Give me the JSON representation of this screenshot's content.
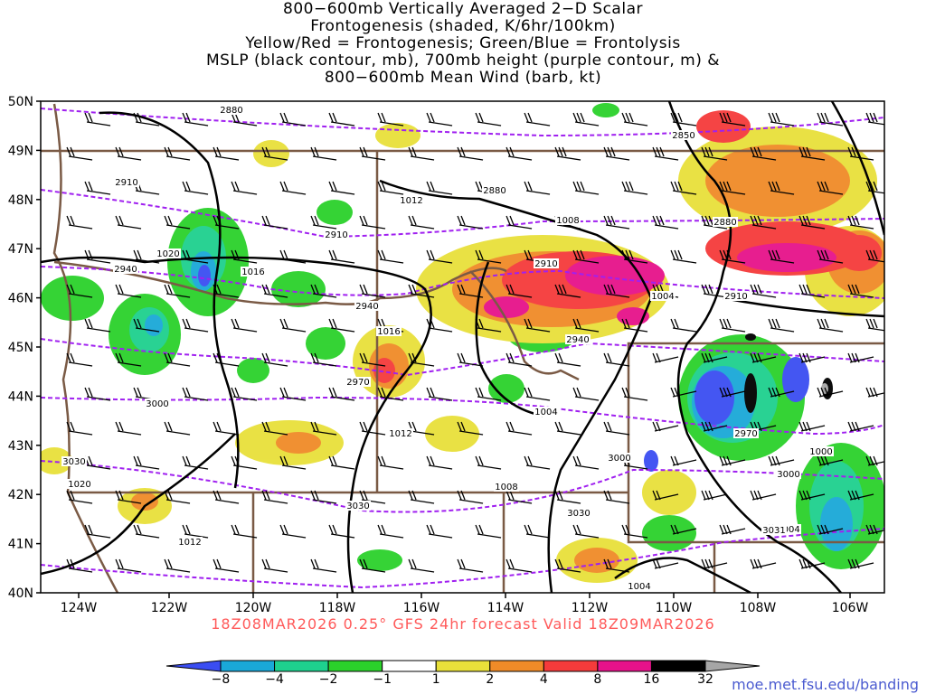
{
  "title_lines": [
    "800−600mb Vertically Averaged 2−D Scalar",
    "Frontogenesis (shaded, K/6hr/100km)",
    "Yellow/Red = Frontogenesis;  Green/Blue = Frontolysis",
    "MSLP (black contour, mb), 700mb height (purple contour, m) &",
    "800−600mb Mean Wind (barb, kt)"
  ],
  "map": {
    "lat_labels": [
      "50N",
      "49N",
      "48N",
      "47N",
      "46N",
      "45N",
      "44N",
      "43N",
      "42N",
      "41N",
      "40N"
    ],
    "lon_labels": [
      "124W",
      "122W",
      "120W",
      "118W",
      "116W",
      "114W",
      "112W",
      "110W",
      "108W",
      "106W"
    ],
    "mslp_labels": [
      "1020",
      "1016",
      "1012",
      "1008",
      "1004",
      "1000",
      "1016",
      "1012",
      "1008",
      "1004",
      "1012",
      "1020",
      "1004",
      "1004"
    ],
    "height_labels": [
      "2880",
      "2850",
      "2910",
      "2880",
      "2880",
      "2910",
      "2940",
      "2910",
      "2910",
      "2940",
      "2940",
      "2970",
      "3000",
      "2970",
      "3030",
      "3000",
      "3030",
      "3000",
      "3030",
      "3031"
    ],
    "colors": {
      "neg_8": "#3a4df2",
      "neg_4": "#1aa8d8",
      "neg_2": "#1ed08e",
      "neg_1": "#2bd12b",
      "pos_1": "#e8e03a",
      "pos_2": "#f08b28",
      "pos_4": "#f53b3b",
      "pos_8": "#e6128a",
      "pos_16": "#000000",
      "pos_32": "#a6a6a6",
      "mslp": "#000000",
      "height": "#a020f0",
      "border": "#7a5a45"
    }
  },
  "footer": "18Z08MAR2026 0.25° GFS 24hr forecast Valid 18Z09MAR2026",
  "colorbar": {
    "ticks": [
      "−8",
      "−4",
      "−2",
      "−1",
      "1",
      "2",
      "4",
      "8",
      "16",
      "32"
    ]
  },
  "url": "moe.met.fsu.edu/banding"
}
